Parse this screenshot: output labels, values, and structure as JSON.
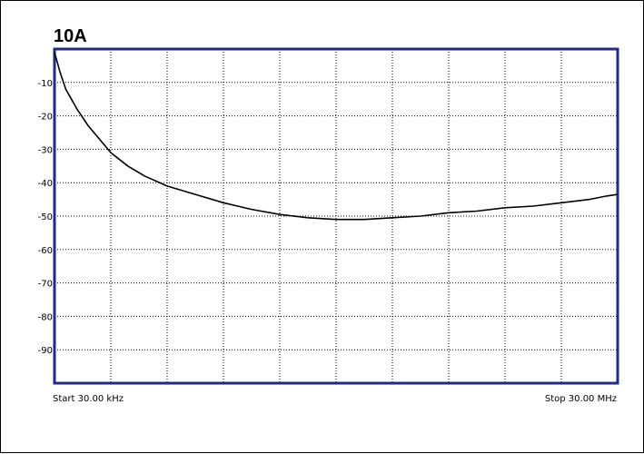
{
  "chart_data": {
    "type": "line",
    "title": "10A",
    "start_label": "Start 30.00 kHz",
    "stop_label": "Stop 30.00 MHz",
    "x_range": [
      0,
      10
    ],
    "ylim": [
      -100,
      0
    ],
    "y_ticks": [
      -10,
      -20,
      -30,
      -40,
      -50,
      -60,
      -70,
      -80,
      -90
    ],
    "grid": true,
    "colors": {
      "trace": "#000000",
      "border": "#1f2a8a",
      "grid": "#000000"
    },
    "series": [
      {
        "x": [
          0.0,
          0.05,
          0.1,
          0.2,
          0.3,
          0.4,
          0.6,
          0.8,
          1.0,
          1.3,
          1.6,
          2.0,
          2.5,
          3.0,
          3.5,
          4.0,
          4.5,
          5.0,
          5.5,
          6.0,
          6.5,
          7.0,
          7.5,
          8.0,
          8.5,
          9.0,
          9.5,
          9.8,
          10.0
        ],
        "y": [
          -1,
          -4,
          -7,
          -12,
          -15,
          -18,
          -23,
          -27,
          -31,
          -35,
          -38,
          -41,
          -43.5,
          -46,
          -48,
          -49.5,
          -50.5,
          -51,
          -51,
          -50.5,
          -50,
          -49,
          -48.5,
          -47.5,
          -47,
          -46,
          -45,
          -44,
          -43.5
        ]
      }
    ]
  }
}
